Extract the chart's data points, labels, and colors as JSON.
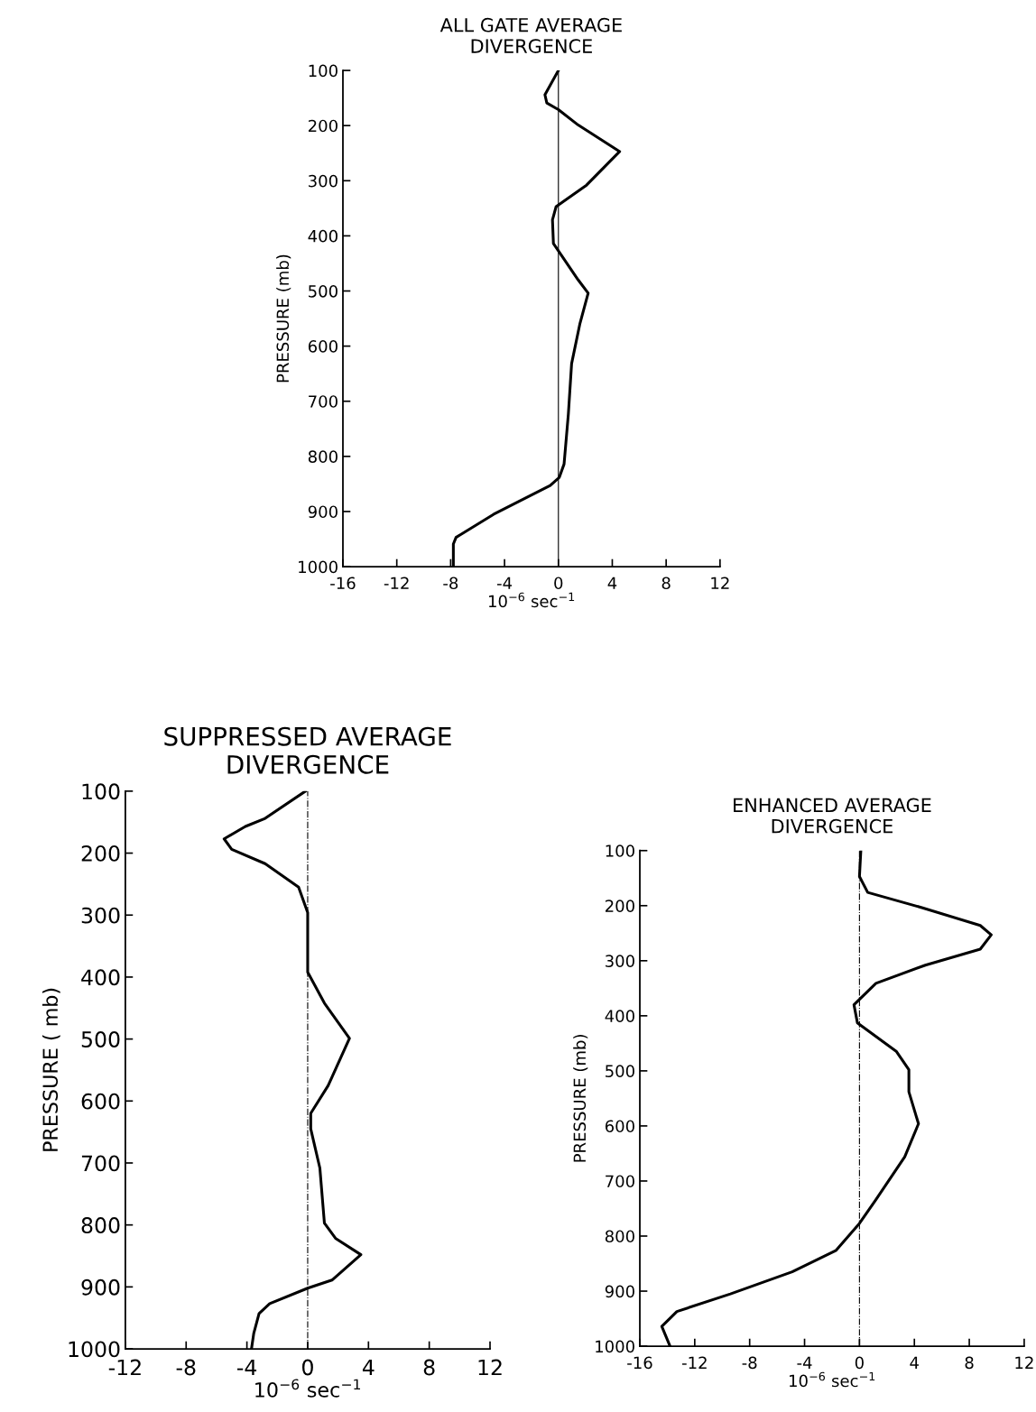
{
  "chart_data": [
    {
      "type": "line",
      "title": "ALL GATE AVERAGE\nDIVERGENCE",
      "xlabel": "10$^{−6}$ sec$^{−1}$",
      "ylabel": "PRESSURE (mb)",
      "xlim": [
        -16,
        12
      ],
      "xticks": [
        -16,
        -12,
        -8,
        -4,
        0,
        4,
        8,
        12
      ],
      "ylim": [
        1000,
        100
      ],
      "yticks": [
        100,
        200,
        300,
        400,
        500,
        600,
        700,
        800,
        900,
        1000
      ],
      "grid": false,
      "ref_lines": [
        {
          "axis": "x",
          "value": 0,
          "color": "#000000",
          "line_style": "solid"
        }
      ],
      "series": [
        {
          "color": "#000000",
          "x": [
            0,
            -1.0,
            -0.86,
            0,
            1.47,
            4.55,
            2.09,
            -0.17,
            -0.44,
            -0.37,
            1.47,
            2.21,
            1.6,
            0.98,
            0.74,
            0.42,
            0.07,
            -0.61,
            -4.8,
            -7.6,
            -7.8,
            -7.8
          ],
          "values": [
            100,
            144,
            159,
            171,
            199,
            247,
            308,
            347,
            371,
            414,
            480,
            504,
            559,
            632,
            723,
            814,
            838,
            853,
            905,
            947,
            959,
            1000
          ]
        }
      ]
    },
    {
      "type": "line",
      "title": "SUPPRESSED AVERAGE\nDIVERGENCE",
      "xlabel": "10$^{−6}$ sec$^{−1}$",
      "ylabel": "PRESSURE ( mb)",
      "xlim": [
        -12,
        12
      ],
      "xticks": [
        -12,
        -8,
        -4,
        0,
        4,
        8,
        12
      ],
      "ylim": [
        1000,
        100
      ],
      "yticks": [
        100,
        200,
        300,
        400,
        500,
        600,
        700,
        800,
        900,
        1000
      ],
      "grid": false,
      "ref_lines": [
        {
          "axis": "x",
          "value": 0,
          "color": "#000000",
          "line_style": "dashdot"
        }
      ],
      "series": [
        {
          "color": "#000000",
          "x": [
            -0.15,
            -2.8,
            -4.1,
            -5.5,
            -5.0,
            -2.8,
            -0.6,
            0,
            0,
            1.1,
            2.75,
            1.35,
            0.2,
            0.2,
            0.8,
            1.1,
            1.85,
            3.5,
            1.6,
            0,
            -2.5,
            -3.2,
            -3.55,
            -3.7
          ],
          "values": [
            100,
            144,
            157,
            177,
            194,
            217,
            255,
            296,
            392,
            442,
            499,
            575,
            620,
            645,
            708,
            797,
            822,
            848,
            889,
            902,
            927,
            943,
            975,
            1000
          ]
        }
      ]
    },
    {
      "type": "line",
      "title": "ENHANCED AVERAGE\nDIVERGENCE",
      "xlabel": "10$^{−6}$ sec$^{−1}$",
      "ylabel": "PRESSURE (mb)",
      "xlim": [
        -16,
        12
      ],
      "xticks": [
        -16,
        -12,
        -8,
        -4,
        0,
        4,
        8,
        12
      ],
      "ylim": [
        1000,
        100
      ],
      "yticks": [
        100,
        200,
        300,
        400,
        500,
        600,
        700,
        800,
        900,
        1000
      ],
      "grid": false,
      "ref_lines": [
        {
          "axis": "x",
          "value": 0,
          "color": "#000000",
          "line_style": "dashdot"
        }
      ],
      "series": [
        {
          "color": "#000000",
          "x": [
            0.1,
            0,
            0.6,
            4.6,
            8.8,
            9.6,
            8.8,
            4.8,
            1.2,
            -0.4,
            -0.15,
            2.7,
            3.6,
            3.6,
            4.3,
            3.3,
            1.2,
            0,
            -1.7,
            -4.9,
            -9.4,
            -13.3,
            -14.4,
            -13.8
          ],
          "values": [
            100,
            147,
            176,
            204,
            236,
            253,
            279,
            308,
            341,
            380,
            413,
            465,
            498,
            538,
            596,
            656,
            734,
            777,
            826,
            865,
            905,
            937,
            964,
            1000
          ]
        }
      ]
    }
  ]
}
